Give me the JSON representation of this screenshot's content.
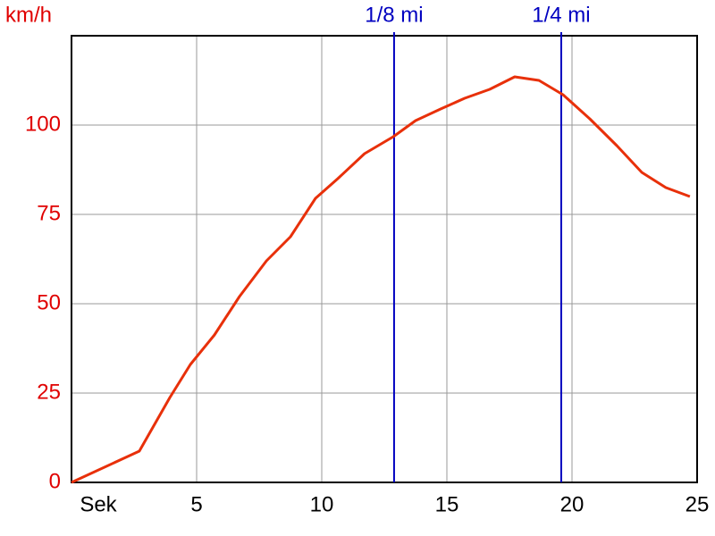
{
  "chart_data": {
    "type": "line",
    "x_label": "Sek",
    "y_label": "km/h",
    "x": [
      0,
      2.71,
      3.93,
      4.75,
      5.71,
      6.71,
      7.79,
      8.75,
      9.75,
      10.64,
      11.71,
      12.86,
      13.75,
      14.75,
      15.71,
      16.71,
      17.71,
      18.68,
      19.64,
      20.71,
      21.79,
      22.79,
      23.75,
      24.71
    ],
    "series": [
      {
        "color": "#e8300a",
        "values": [
          0,
          8.75,
          23.75,
          33,
          41.25,
          52,
          62,
          68.75,
          79.5,
          85,
          92,
          96.75,
          101.25,
          104.5,
          107.5,
          110,
          113.5,
          112.5,
          108.5,
          101.75,
          94.25,
          86.75,
          82.5,
          80
        ]
      }
    ],
    "xlim": [
      0,
      25
    ],
    "ylim": [
      0,
      125
    ],
    "xticks": [
      5,
      10,
      15,
      20,
      25
    ],
    "yticks": [
      0,
      25,
      50,
      75,
      100
    ],
    "grid": true,
    "y_axis_color": "#e00000",
    "markers": [
      {
        "label": "1/8 mi",
        "x": 12.89
      },
      {
        "label": "1/4 mi",
        "x": 19.57
      }
    ],
    "marker_color": "#0000c0"
  }
}
